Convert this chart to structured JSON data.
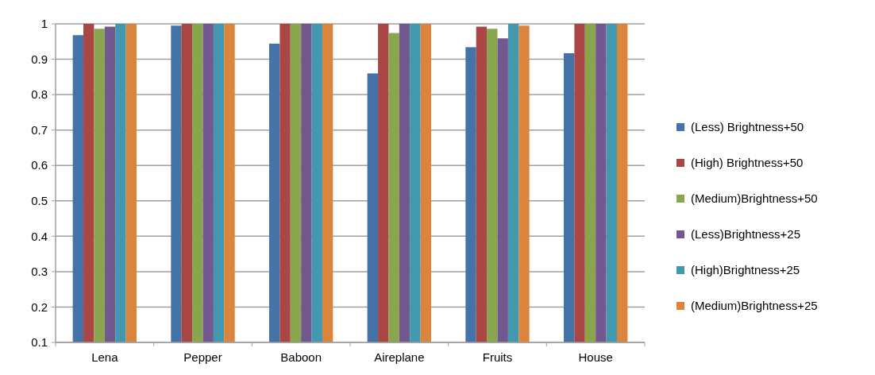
{
  "chart_data": {
    "type": "bar",
    "categories": [
      "Lena",
      "Pepper",
      "Baboon",
      "Aireplane",
      "Fruits",
      "House"
    ],
    "series": [
      {
        "name": "(Less) Brightness+50",
        "color": "#4572a7",
        "values": [
          0.968,
          0.995,
          0.944,
          0.86,
          0.934,
          0.917
        ]
      },
      {
        "name": "(High) Brightness+50",
        "color": "#aa4643",
        "values": [
          1,
          1,
          1,
          1,
          0.992,
          1
        ]
      },
      {
        "name": "(Medium)Brightness+50",
        "color": "#89a54e",
        "values": [
          0.986,
          1,
          1,
          0.974,
          0.986,
          1
        ]
      },
      {
        "name": "(Less)Brightness+25",
        "color": "#71588f",
        "values": [
          0.992,
          1,
          1,
          1,
          0.959,
          1
        ]
      },
      {
        "name": "(High)Brightness+25",
        "color": "#4198af",
        "values": [
          1,
          1,
          1,
          1,
          1,
          1
        ]
      },
      {
        "name": "(Medium)Brightness+25",
        "color": "#db843d",
        "values": [
          1,
          1,
          1,
          1,
          0.995,
          1
        ]
      }
    ],
    "ylim": [
      0.1,
      1
    ],
    "yticks": [
      {
        "value": 0.1,
        "label": "0.1"
      },
      {
        "value": 0.2,
        "label": "0.2"
      },
      {
        "value": 0.3,
        "label": "0.3"
      },
      {
        "value": 0.4,
        "label": "0.4"
      },
      {
        "value": 0.5,
        "label": "0.5"
      },
      {
        "value": 0.6,
        "label": "0.6"
      },
      {
        "value": 0.7,
        "label": "0.7"
      },
      {
        "value": 0.8,
        "label": "0.8"
      },
      {
        "value": 0.9,
        "label": "0.9"
      },
      {
        "value": 1,
        "label": "1"
      }
    ],
    "grid": "y",
    "legend": "right"
  }
}
